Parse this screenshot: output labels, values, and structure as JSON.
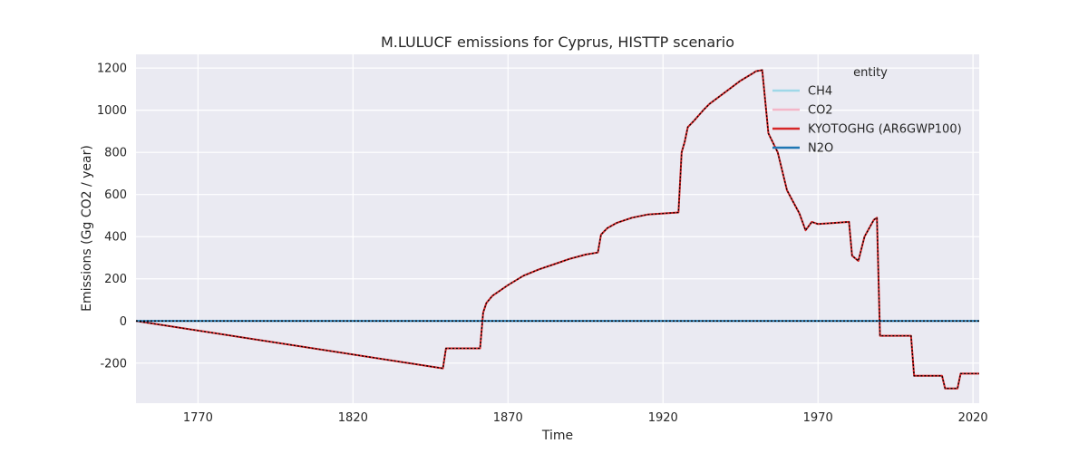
{
  "chart_data": {
    "type": "line",
    "title": "M.LULUCF emissions for Cyprus, HISTTP scenario",
    "xlabel": "Time",
    "ylabel": "Emissions (Gg CO2 / year)",
    "xlim": [
      1750,
      2022
    ],
    "ylim": [
      -390,
      1265
    ],
    "xticks": [
      1770,
      1820,
      1870,
      1920,
      1970,
      2020
    ],
    "yticks": [
      -200,
      0,
      200,
      400,
      600,
      800,
      1000,
      1200
    ],
    "grid": true,
    "legend": {
      "title": "entity",
      "placement": "top-right"
    },
    "series": [
      {
        "name": "CH4",
        "color": "#9fd8e8",
        "x": [
          1750,
          2022
        ],
        "y": [
          0,
          0
        ]
      },
      {
        "name": "CO2",
        "color": "#f4b6c8",
        "x": [
          1750,
          1849,
          1850,
          1861,
          1862,
          1863,
          1865,
          1870,
          1875,
          1880,
          1885,
          1890,
          1895,
          1899,
          1900,
          1902,
          1905,
          1910,
          1915,
          1920,
          1925,
          1926,
          1927,
          1928,
          1930,
          1933,
          1935,
          1940,
          1945,
          1949,
          1950,
          1952,
          1954,
          1957,
          1960,
          1964,
          1966,
          1968,
          1970,
          1975,
          1980,
          1981,
          1983,
          1985,
          1988,
          1989,
          1990,
          1995,
          2000,
          2001,
          2005,
          2010,
          2011,
          2014,
          2015,
          2016,
          2022
        ],
        "y": [
          0,
          -225,
          -130,
          -130,
          40,
          85,
          120,
          170,
          215,
          245,
          270,
          295,
          315,
          325,
          410,
          440,
          465,
          490,
          505,
          510,
          515,
          800,
          850,
          920,
          950,
          1000,
          1030,
          1085,
          1140,
          1175,
          1185,
          1190,
          890,
          800,
          620,
          510,
          430,
          470,
          460,
          465,
          470,
          310,
          285,
          400,
          480,
          490,
          -70,
          -70,
          -70,
          -260,
          -260,
          -260,
          -320,
          -320,
          -320,
          -250,
          -250
        ]
      },
      {
        "name": "KYOTOGHG (AR6GWP100)",
        "color": "#d62728",
        "x": [
          1750,
          1849,
          1850,
          1861,
          1862,
          1863,
          1865,
          1870,
          1875,
          1880,
          1885,
          1890,
          1895,
          1899,
          1900,
          1902,
          1905,
          1910,
          1915,
          1920,
          1925,
          1926,
          1927,
          1928,
          1930,
          1933,
          1935,
          1940,
          1945,
          1949,
          1950,
          1952,
          1954,
          1957,
          1960,
          1964,
          1966,
          1968,
          1970,
          1975,
          1980,
          1981,
          1983,
          1985,
          1988,
          1989,
          1990,
          1995,
          2000,
          2001,
          2005,
          2010,
          2011,
          2014,
          2015,
          2016,
          2022
        ],
        "y": [
          0,
          -225,
          -130,
          -130,
          40,
          85,
          120,
          170,
          215,
          245,
          270,
          295,
          315,
          325,
          410,
          440,
          465,
          490,
          505,
          510,
          515,
          800,
          850,
          920,
          950,
          1000,
          1030,
          1085,
          1140,
          1175,
          1185,
          1190,
          890,
          800,
          620,
          510,
          430,
          470,
          460,
          465,
          470,
          310,
          285,
          400,
          480,
          490,
          -70,
          -70,
          -70,
          -260,
          -260,
          -260,
          -320,
          -320,
          -320,
          -250,
          -250
        ]
      },
      {
        "name": "N2O",
        "color": "#1f77b4",
        "x": [
          1750,
          2022
        ],
        "y": [
          0,
          0
        ]
      }
    ],
    "overlay": {
      "color": "#000000",
      "dash": "dotted",
      "lines": [
        {
          "x": [
            1750,
            1849,
            1850,
            1861,
            1862,
            1863,
            1865,
            1870,
            1875,
            1880,
            1885,
            1890,
            1895,
            1899,
            1900,
            1902,
            1905,
            1910,
            1915,
            1920,
            1925,
            1926,
            1927,
            1928,
            1930,
            1933,
            1935,
            1940,
            1945,
            1949,
            1950,
            1952,
            1954,
            1957,
            1960,
            1964,
            1966,
            1968,
            1970,
            1975,
            1980,
            1981,
            1983,
            1985,
            1988,
            1989,
            1990,
            1995,
            2000,
            2001,
            2005,
            2010,
            2011,
            2014,
            2015,
            2016,
            2022
          ],
          "y": [
            0,
            -225,
            -130,
            -130,
            40,
            85,
            120,
            170,
            215,
            245,
            270,
            295,
            315,
            325,
            410,
            440,
            465,
            490,
            505,
            510,
            515,
            800,
            850,
            920,
            950,
            1000,
            1030,
            1085,
            1140,
            1175,
            1185,
            1190,
            890,
            800,
            620,
            510,
            430,
            470,
            460,
            465,
            470,
            310,
            285,
            400,
            480,
            490,
            -70,
            -70,
            -70,
            -260,
            -260,
            -260,
            -320,
            -320,
            -320,
            -250,
            -250
          ]
        },
        {
          "x": [
            1750,
            2022
          ],
          "y": [
            0,
            0
          ]
        }
      ]
    }
  }
}
